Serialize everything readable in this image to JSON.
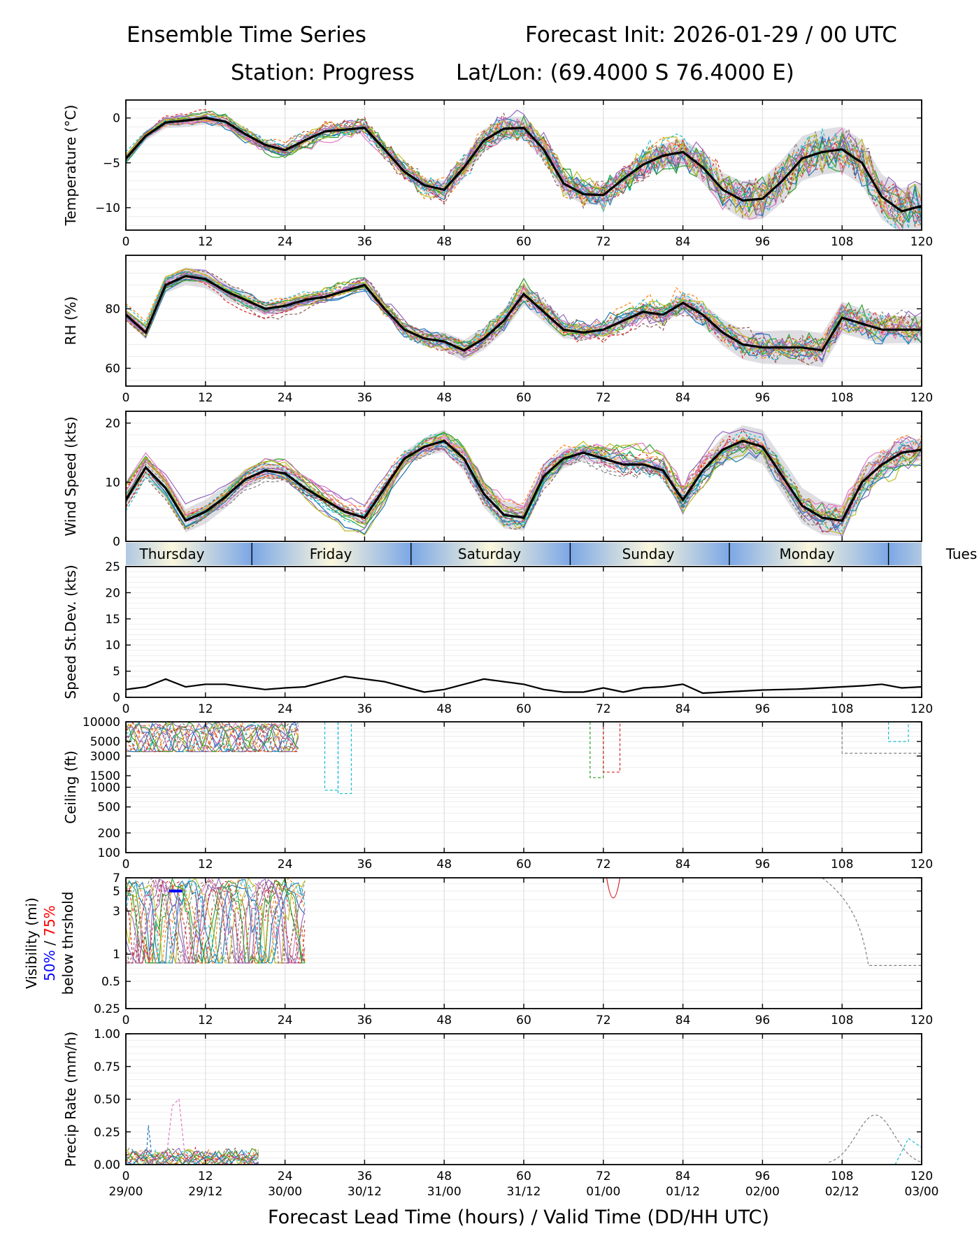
{
  "header": {
    "title": "Ensemble Time Series",
    "init": "Forecast Init: 2026-01-29 / 00 UTC",
    "station": "Station: Progress",
    "latlon": "Lat/Lon: (69.4000 S 76.4000 E)"
  },
  "x_label": "Forecast Lead Time (hours) / Valid Time (DD/HH UTC)",
  "colors": {
    "mean": "#000000",
    "grid": "#e3e3e3",
    "day_blue": "#7ba7e6",
    "day_cream": "#fbf7dc",
    "vis_50": "#0000ff",
    "vis_75": "#ff0000",
    "members": [
      "#1f77b4",
      "#ff7f0e",
      "#2ca02c",
      "#d62728",
      "#9467bd",
      "#8c564b",
      "#e377c2",
      "#7f7f7f",
      "#bcbd22",
      "#17becf"
    ]
  },
  "chart_data": {
    "type": "line",
    "lead_ticks": [
      "0",
      "12",
      "24",
      "36",
      "48",
      "60",
      "72",
      "84",
      "96",
      "108",
      "120"
    ],
    "valid_ticks": [
      "29/00",
      "29/12",
      "30/00",
      "30/12",
      "31/00",
      "31/12",
      "01/00",
      "01/12",
      "02/00",
      "02/12",
      "03/00"
    ],
    "xlim": [
      0,
      120
    ],
    "day_band": {
      "labels": [
        "Thursday",
        "Friday",
        "Saturday",
        "Sunday",
        "Monday",
        "Tues"
      ],
      "day_boundaries_hours": [
        19,
        43,
        67,
        91,
        115
      ]
    },
    "panels": [
      {
        "id": "temperature",
        "ylabel": "Temperature (°C)",
        "scale": "linear",
        "ylim": [
          -12.5,
          2
        ],
        "yticks": [
          0,
          -5,
          -10
        ],
        "ytick_labels": [
          "0",
          "−5",
          "−10"
        ],
        "mean": {
          "x": [
            0,
            3,
            6,
            9,
            12,
            15,
            18,
            21,
            24,
            27,
            30,
            33,
            36,
            39,
            42,
            45,
            48,
            51,
            54,
            57,
            60,
            63,
            66,
            69,
            72,
            75,
            78,
            81,
            84,
            87,
            90,
            93,
            96,
            99,
            102,
            105,
            108,
            111,
            114,
            117,
            120
          ],
          "y": [
            -4.5,
            -2,
            -0.5,
            -0.3,
            0,
            -0.4,
            -1.8,
            -3,
            -3.6,
            -2.5,
            -1.5,
            -1.3,
            -1.1,
            -3.5,
            -6,
            -7.5,
            -8,
            -5.5,
            -2.5,
            -1.2,
            -1.1,
            -3.5,
            -7.3,
            -8.5,
            -8.6,
            -6.8,
            -5.2,
            -4.2,
            -3.8,
            -5.5,
            -8,
            -9.2,
            -9,
            -7,
            -4.5,
            -3.8,
            -3.5,
            -5,
            -8.8,
            -10.4,
            -9.8
          ]
        },
        "spread": 0.7,
        "spread_growth": 2.5
      },
      {
        "id": "rh",
        "ylabel": "RH (%)",
        "scale": "linear",
        "ylim": [
          54,
          98
        ],
        "yticks": [
          60,
          80
        ],
        "ytick_labels": [
          "60",
          "80"
        ],
        "mean": {
          "x": [
            0,
            3,
            6,
            9,
            12,
            15,
            18,
            21,
            24,
            27,
            30,
            33,
            36,
            39,
            42,
            45,
            48,
            51,
            54,
            57,
            60,
            63,
            66,
            69,
            72,
            75,
            78,
            81,
            84,
            87,
            90,
            93,
            96,
            99,
            102,
            105,
            108,
            111,
            114,
            117,
            120
          ],
          "y": [
            78,
            72,
            88,
            91,
            90,
            86,
            83,
            80,
            81,
            83,
            84,
            86,
            88,
            80,
            73,
            70,
            69,
            66,
            70,
            76,
            85,
            79,
            73,
            72,
            73,
            76,
            79,
            78,
            82,
            78,
            72,
            68,
            67,
            67,
            67,
            66,
            77,
            75,
            73,
            73,
            73
          ]
        },
        "spread": 3,
        "spread_growth": 4
      },
      {
        "id": "wind",
        "ylabel": "Wind Speed (kts)",
        "scale": "linear",
        "ylim": [
          0,
          22
        ],
        "yticks": [
          0,
          10,
          20
        ],
        "ytick_labels": [
          "0",
          "10",
          "20"
        ],
        "mean": {
          "x": [
            0,
            3,
            6,
            9,
            12,
            15,
            18,
            21,
            24,
            27,
            30,
            33,
            36,
            39,
            42,
            45,
            48,
            51,
            54,
            57,
            60,
            63,
            66,
            69,
            72,
            75,
            78,
            81,
            84,
            87,
            90,
            93,
            96,
            99,
            102,
            105,
            108,
            111,
            114,
            117,
            120
          ],
          "y": [
            7,
            12.5,
            9,
            3.5,
            5,
            7.5,
            10.5,
            12,
            11.5,
            9,
            7,
            5,
            4,
            9,
            14,
            16,
            17,
            14,
            8,
            4.5,
            4,
            11,
            14,
            15,
            14,
            13,
            13,
            12,
            7,
            12,
            15.5,
            17,
            16,
            11,
            6,
            4,
            3.5,
            10,
            13,
            15,
            15.5
          ]
        },
        "spread": 2,
        "spread_growth": 1.5
      },
      {
        "id": "stdev",
        "ylabel": "Speed St.Dev. (kts)",
        "scale": "linear",
        "ylim": [
          0,
          25
        ],
        "yticks": [
          0,
          5,
          10,
          15,
          20,
          25
        ],
        "ytick_labels": [
          "0",
          "5",
          "10",
          "15",
          "20",
          "25"
        ],
        "mean": {
          "x": [
            0,
            3,
            6,
            9,
            12,
            15,
            18,
            21,
            24,
            27,
            30,
            33,
            36,
            39,
            42,
            45,
            48,
            51,
            54,
            57,
            60,
            63,
            66,
            69,
            72,
            75,
            78,
            81,
            84,
            87,
            90,
            93,
            96,
            99,
            102,
            105,
            108,
            111,
            114,
            117,
            120
          ],
          "y": [
            1.5,
            2,
            3.5,
            2,
            2.5,
            2.5,
            2,
            1.5,
            1.8,
            2,
            3,
            4,
            3.5,
            3,
            2,
            1,
            1.5,
            2.5,
            3.5,
            3,
            2.5,
            1.5,
            1,
            1,
            1.8,
            1,
            1.8,
            2,
            2.5,
            0.8,
            1,
            1.2,
            1.4,
            1.5,
            1.6,
            1.8,
            2,
            2.2,
            2.5,
            1.8,
            2
          ]
        },
        "spread": 0,
        "spread_growth": 0
      },
      {
        "id": "ceiling",
        "ylabel": "Ceiling (ft)",
        "scale": "log",
        "ylim": [
          100,
          10000
        ],
        "yticks": [
          100,
          200,
          500,
          1000,
          1500,
          3000,
          5000,
          10000
        ],
        "ytick_labels": [
          "100",
          "200",
          "500",
          "1000",
          "1500",
          "3000",
          "5000",
          "10000"
        ]
      },
      {
        "id": "visibility",
        "ylabel_lines": [
          "Visibility (mi)",
          "50% / 75%",
          "below thrshold"
        ],
        "scale": "log",
        "ylim": [
          0.25,
          7
        ],
        "yticks": [
          0.25,
          0.5,
          1,
          3,
          5,
          7
        ],
        "ytick_labels": [
          "0.25",
          "0.5",
          "1",
          "3",
          "5",
          "7"
        ]
      },
      {
        "id": "precip",
        "ylabel": "Precip Rate (mm/h)",
        "scale": "linear",
        "ylim": [
          0,
          1
        ],
        "yticks": [
          0,
          0.25,
          0.5,
          0.75,
          1
        ],
        "ytick_labels": [
          "0.00",
          "0.25",
          "0.50",
          "0.75",
          "1.00"
        ]
      }
    ]
  }
}
